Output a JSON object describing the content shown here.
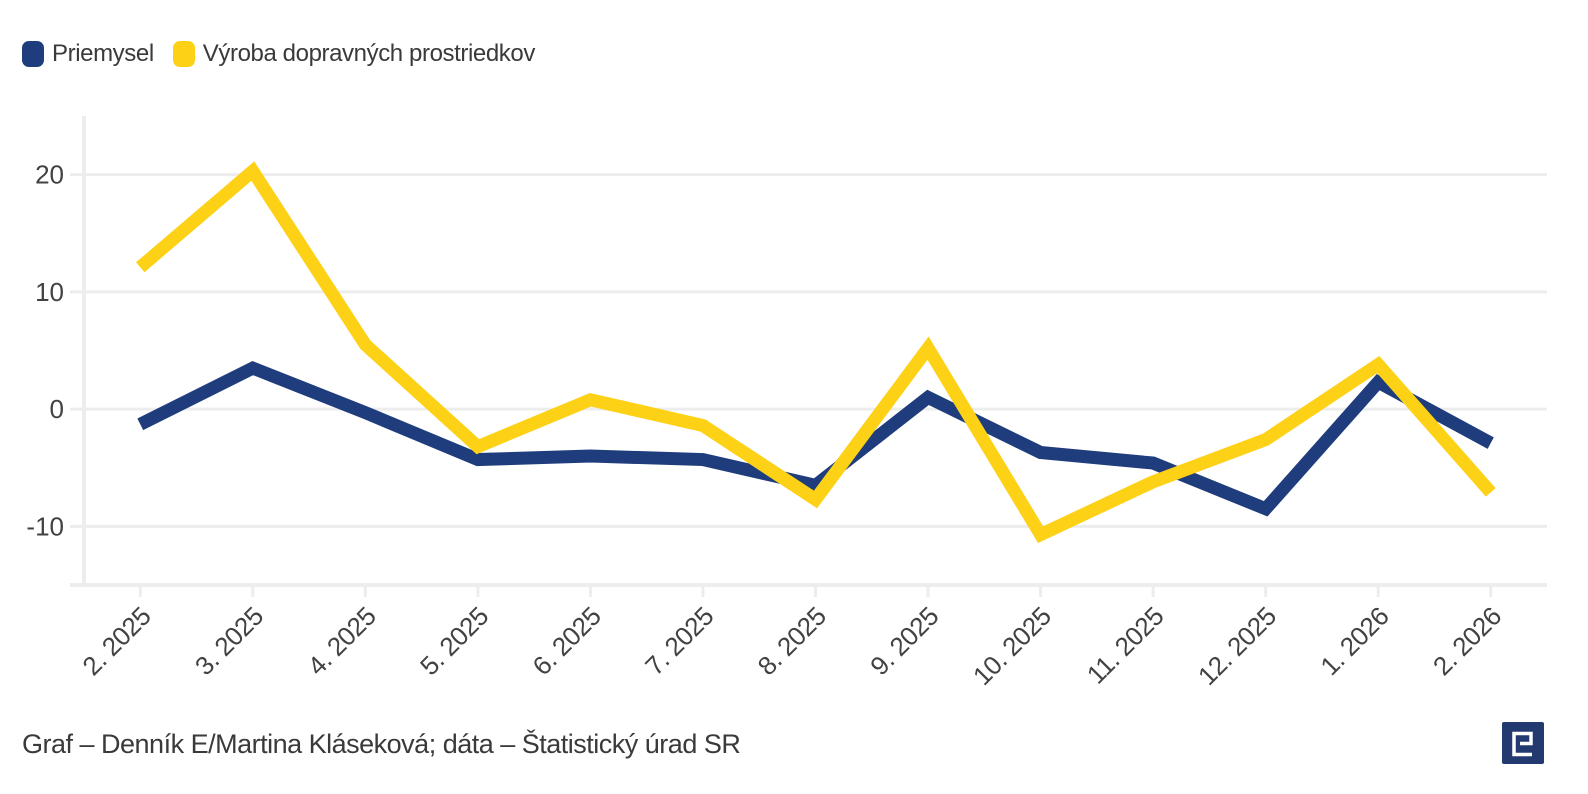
{
  "legend": {
    "items": [
      {
        "label": "Priemysel",
        "color": "#1F3D7C"
      },
      {
        "label": "Výroba dopravných prostriedkov",
        "color": "#FCD116"
      }
    ]
  },
  "chart_data": {
    "type": "line",
    "title": "",
    "xlabel": "",
    "ylabel": "",
    "categories": [
      "2. 2025",
      "3. 2025",
      "4. 2025",
      "5. 2025",
      "6. 2025",
      "7. 2025",
      "8. 2025",
      "9. 2025",
      "10. 2025",
      "11. 2025",
      "12. 2025",
      "1. 2026",
      "2. 2026"
    ],
    "series": [
      {
        "name": "Priemysel",
        "color": "#1F3D7C",
        "values": [
          -1.3,
          3.5,
          -0.3,
          -4.3,
          -4.0,
          -4.3,
          -6.5,
          1.0,
          -3.7,
          -4.6,
          -8.5,
          2.3,
          -2.9
        ]
      },
      {
        "name": "Výroba dopravných prostriedkov",
        "color": "#FCD116",
        "values": [
          12.1,
          20.3,
          5.5,
          -3.2,
          0.8,
          -1.4,
          -7.7,
          5.2,
          -10.7,
          -6.2,
          -2.6,
          3.8,
          -7.1
        ]
      }
    ],
    "ylim": [
      -15,
      25
    ],
    "yticks": [
      20,
      10,
      0,
      -10
    ],
    "grid": true,
    "legend_position": "top-left",
    "axis_color": "#EDEDED",
    "tick_label_color": "#424242"
  },
  "footer": {
    "credit": "Graf – Denník E/Martina Kláseková; dáta – Štatistický úrad SR"
  },
  "logo": {
    "name": "Denník E",
    "background": "#233A70",
    "glyph_color": "#FFFFFF"
  }
}
